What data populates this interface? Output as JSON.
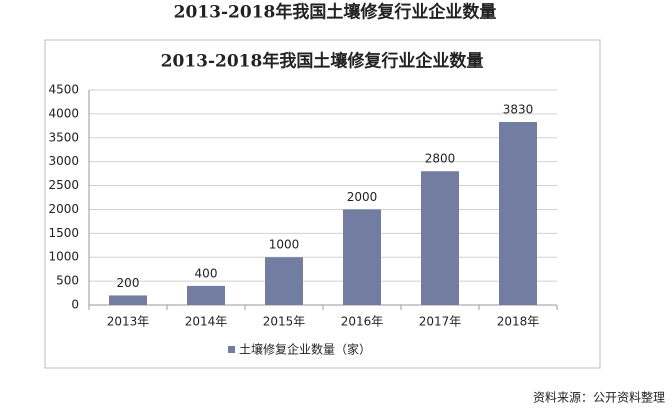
{
  "page_title": "2013-2018年我国土壤修复行业企业数量",
  "chart_data": {
    "type": "bar",
    "title": "2013-2018年我国土壤修复行业企业数量",
    "categories": [
      "2013年",
      "2014年",
      "2015年",
      "2016年",
      "2017年",
      "2018年"
    ],
    "series": [
      {
        "name": "土壤修复企业数量（家）",
        "color": "#737ca1",
        "values": [
          200,
          400,
          1000,
          2000,
          2800,
          3830
        ]
      }
    ],
    "ylim": [
      0,
      4500
    ],
    "yticks": [
      0,
      500,
      1000,
      1500,
      2000,
      2500,
      3000,
      3500,
      4000,
      4500
    ],
    "grid": true,
    "legend": "bottom"
  },
  "source": "资料来源：公开资料整理"
}
